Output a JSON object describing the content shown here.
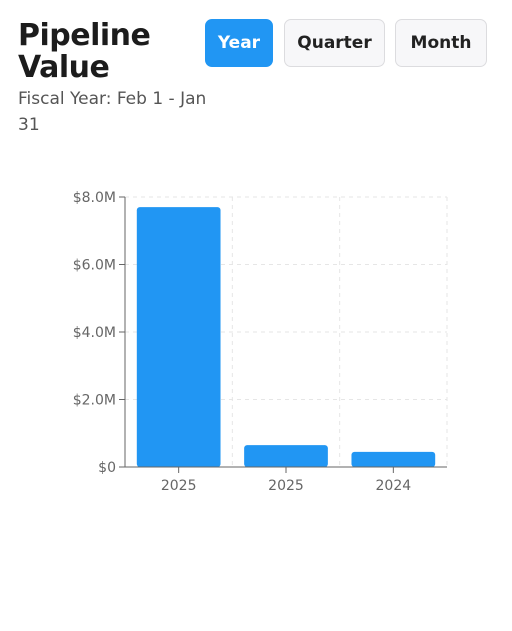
{
  "header": {
    "title": "Pipeline Value",
    "subtitle": "Fiscal Year: Feb 1 - Jan 31"
  },
  "period_buttons": {
    "year": "Year",
    "quarter": "Quarter",
    "month": "Month",
    "selected": "Year"
  },
  "colors": {
    "accent": "#2196f3",
    "bar": "#2196f3",
    "axis": "#666666",
    "grid": "#e6e6e6"
  },
  "chart_data": {
    "type": "bar",
    "categories": [
      "2025",
      "2025",
      "2024"
    ],
    "values": [
      7700000,
      650000,
      450000
    ],
    "ylim": [
      0,
      8000000
    ],
    "yticks": [
      0,
      2000000,
      4000000,
      6000000,
      8000000
    ],
    "ytick_labels": [
      "$0",
      "$2.0M",
      "$4.0M",
      "$6.0M",
      "$8.0M"
    ],
    "grid": true,
    "legend": "none"
  }
}
